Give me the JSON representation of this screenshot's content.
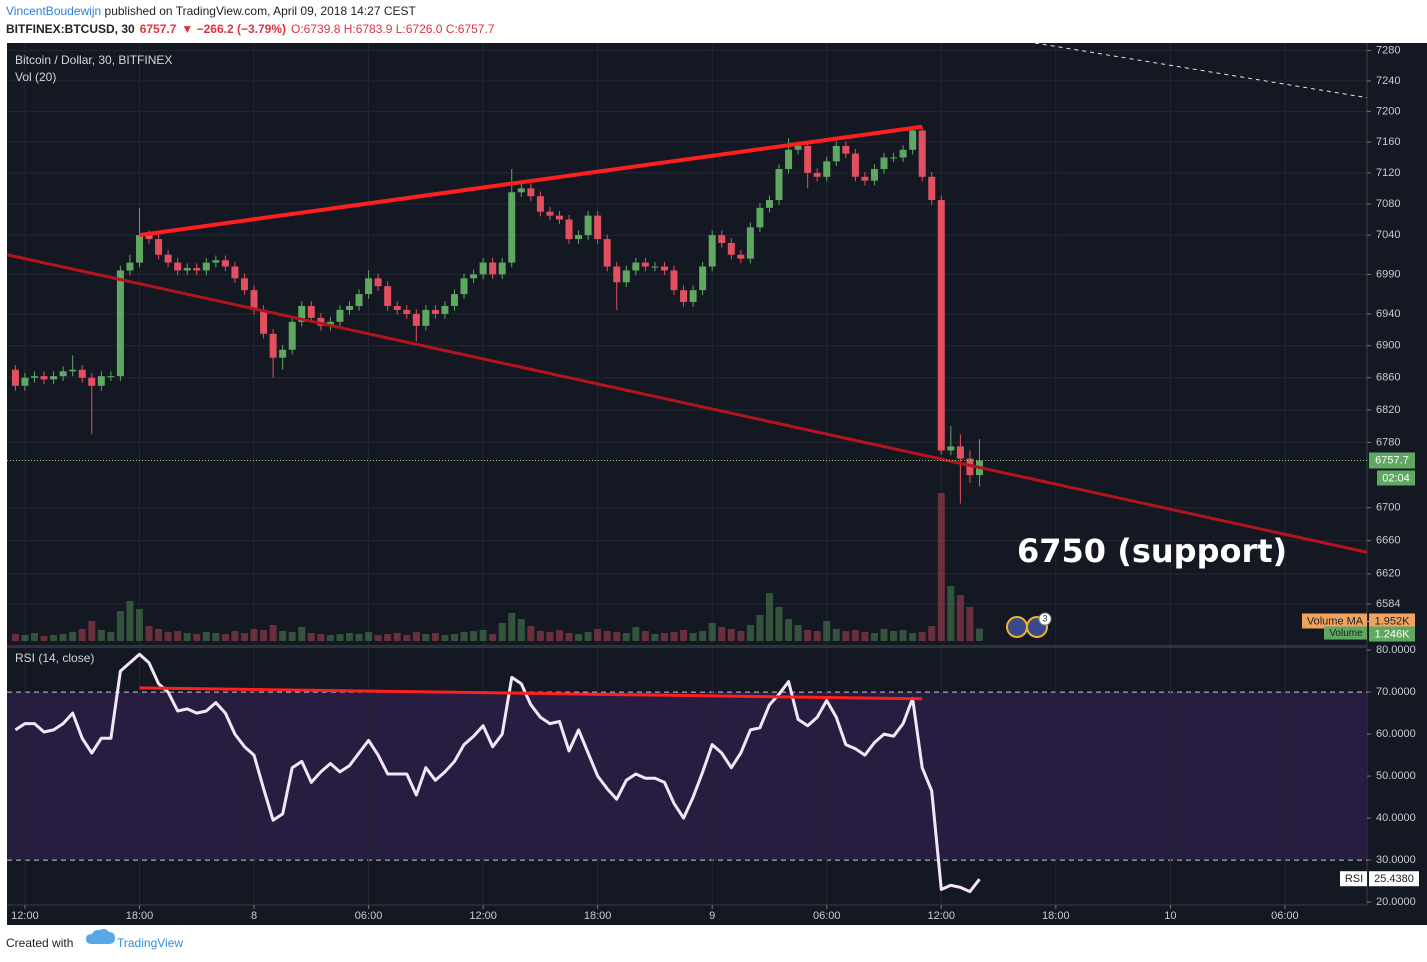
{
  "header": {
    "author": "VincentBoudewijn",
    "published": " published on TradingView.com, April 09, 2018 14:27 CEST",
    "symbol": "BITFINEX:BTCUSD, 30",
    "last": "6757.7",
    "change": "▼ −266.2 (−3.79%)",
    "ohlc": "O:6739.8 H:6783.9 L:6726.0 C:6757.7"
  },
  "footer": {
    "created": "Created with",
    "brand": "TradingView"
  },
  "chart_data": [
    {
      "type": "candlestick",
      "title": "Bitcoin / Dollar, 30, BITFINEX",
      "volume_title": "Vol (20)",
      "x": [
        -0.5,
        0,
        0.5,
        1,
        1.5,
        2,
        2.5,
        3,
        3.5,
        4,
        4.5,
        5,
        5.5,
        6,
        6.5,
        7,
        7.5,
        8,
        8.5,
        9,
        9.5,
        10,
        10.5,
        11,
        11.5,
        12,
        12.5,
        13,
        13.5,
        14,
        14.5,
        15,
        15.5,
        16,
        16.5,
        17,
        17.5,
        18,
        18.5,
        19,
        19.5,
        20,
        20.5,
        21,
        21.5,
        22,
        22.5,
        23,
        23.5,
        24,
        24.5,
        25,
        25.5,
        26,
        26.5,
        27,
        27.5,
        28,
        28.5,
        29,
        29.5,
        30,
        30.5,
        31,
        31.5,
        32,
        32.5,
        33,
        33.5,
        34,
        34.5,
        35,
        35.5,
        36,
        36.5,
        37,
        37.5,
        38,
        38.5,
        39,
        39.5,
        40,
        40.5,
        41,
        41.5,
        42,
        42.5,
        43,
        43.5,
        44,
        44.5,
        45,
        45.5,
        46,
        46.5,
        47,
        47.5,
        48,
        48.5,
        49,
        49.5,
        50
      ],
      "open": [
        6870,
        6850,
        6860,
        6862,
        6858,
        6862,
        6868,
        6870,
        6860,
        6850,
        6862,
        6862,
        6995,
        7005,
        7040,
        7035,
        7015,
        7005,
        6995,
        6998,
        6995,
        7005,
        7008,
        7000,
        6985,
        6970,
        6945,
        6915,
        6885,
        6895,
        6930,
        6950,
        6935,
        6925,
        6930,
        6945,
        6950,
        6965,
        6985,
        6975,
        6950,
        6945,
        6940,
        6925,
        6945,
        6940,
        6950,
        6965,
        6985,
        6990,
        7005,
        6990,
        7005,
        7095,
        7100,
        7090,
        7070,
        7065,
        7060,
        7035,
        7040,
        7065,
        7035,
        7000,
        6980,
        6995,
        7005,
        7000,
        7000,
        6995,
        6970,
        6955,
        6970,
        7000,
        7040,
        7030,
        7015,
        7010,
        7050,
        7075,
        7085,
        7125,
        7150,
        7155,
        7120,
        7115,
        7135,
        7155,
        7145,
        7115,
        7110,
        7125,
        7140,
        7140,
        7150,
        7175,
        7115,
        7085,
        6770,
        6775,
        6760,
        6739.8
      ],
      "high": [
        6876,
        6866,
        6868,
        6868,
        6868,
        6874,
        6888,
        6876,
        6866,
        6868,
        6868,
        7001,
        7015,
        7075,
        7046,
        7041,
        7021,
        7011,
        7004,
        7004,
        7011,
        7014,
        7014,
        7006,
        6991,
        6976,
        6951,
        6921,
        6901,
        6936,
        6956,
        6956,
        6941,
        6936,
        6951,
        6956,
        6971,
        6995,
        6991,
        6981,
        6956,
        6951,
        6946,
        6951,
        6951,
        6956,
        6971,
        6991,
        6996,
        7011,
        7011,
        7011,
        7125,
        7106,
        7106,
        7096,
        7076,
        7071,
        7066,
        7046,
        7071,
        7071,
        7041,
        7006,
        7001,
        7011,
        7011,
        7006,
        7006,
        7001,
        6976,
        6976,
        7006,
        7046,
        7046,
        7036,
        7021,
        7056,
        7081,
        7091,
        7131,
        7165,
        7161,
        7161,
        7126,
        7141,
        7161,
        7161,
        7151,
        7121,
        7131,
        7146,
        7146,
        7156,
        7180,
        7180,
        7121,
        7091,
        6800,
        6790,
        6770,
        6783.9
      ],
      "low": [
        6844,
        6844,
        6854,
        6852,
        6852,
        6856,
        6862,
        6854,
        6790,
        6844,
        6856,
        6856,
        6989,
        6999,
        7029,
        7009,
        6999,
        6989,
        6989,
        6989,
        6989,
        6999,
        6994,
        6979,
        6964,
        6939,
        6909,
        6860,
        6870,
        6889,
        6924,
        6929,
        6919,
        6919,
        6924,
        6939,
        6944,
        6959,
        6969,
        6944,
        6939,
        6934,
        6905,
        6919,
        6934,
        6934,
        6944,
        6959,
        6979,
        6984,
        6984,
        6984,
        6999,
        7089,
        7084,
        7064,
        7059,
        7054,
        7029,
        7029,
        7034,
        7029,
        6994,
        6945,
        6974,
        6989,
        6994,
        6994,
        6989,
        6964,
        6949,
        6949,
        6964,
        6994,
        7024,
        7009,
        7004,
        7004,
        7044,
        7069,
        7079,
        7119,
        7144,
        7100,
        7109,
        7109,
        7129,
        7139,
        7109,
        7104,
        7104,
        7119,
        7134,
        7134,
        7144,
        7109,
        7079,
        6765,
        6764,
        6705,
        6730,
        6726
      ],
      "close": [
        6850,
        6860,
        6862,
        6858,
        6862,
        6868,
        6870,
        6860,
        6850,
        6862,
        6862,
        6995,
        7005,
        7040,
        7035,
        7015,
        7005,
        6995,
        6998,
        6995,
        7005,
        7008,
        7000,
        6985,
        6970,
        6945,
        6915,
        6885,
        6895,
        6930,
        6950,
        6935,
        6925,
        6930,
        6945,
        6950,
        6965,
        6985,
        6975,
        6950,
        6945,
        6940,
        6925,
        6945,
        6940,
        6950,
        6965,
        6985,
        6990,
        7005,
        6990,
        7005,
        7095,
        7100,
        7090,
        7070,
        7065,
        7060,
        7035,
        7040,
        7065,
        7035,
        7000,
        6980,
        6995,
        7005,
        7000,
        7000,
        6995,
        6970,
        6955,
        6970,
        7000,
        7040,
        7030,
        7015,
        7010,
        7050,
        7075,
        7085,
        7125,
        7150,
        7155,
        7120,
        7115,
        7135,
        7155,
        7145,
        7115,
        7110,
        7125,
        7140,
        7140,
        7150,
        7175,
        7115,
        7085,
        6770,
        6775,
        6760,
        6739.8,
        6757.7
      ],
      "volume": [
        700,
        600,
        800,
        500,
        600,
        700,
        900,
        1200,
        2000,
        1100,
        900,
        3000,
        4000,
        3200,
        1500,
        1200,
        900,
        1000,
        800,
        700,
        900,
        800,
        700,
        1000,
        800,
        1200,
        1100,
        1600,
        1000,
        900,
        1400,
        800,
        700,
        600,
        700,
        800,
        700,
        900,
        600,
        700,
        800,
        600,
        900,
        700,
        800,
        600,
        700,
        900,
        1000,
        1100,
        700,
        1800,
        2800,
        2200,
        1500,
        1000,
        900,
        1100,
        800,
        700,
        900,
        1200,
        1000,
        900,
        800,
        1400,
        1000,
        700,
        800,
        900,
        1100,
        800,
        1000,
        1800,
        1400,
        1200,
        1000,
        1600,
        2600,
        4800,
        3400,
        2200,
        1600,
        1100,
        1000,
        2000,
        1200,
        1000,
        1100,
        900,
        800,
        1200,
        1000,
        1100,
        800,
        900,
        1500,
        14800,
        5500,
        4600,
        3400,
        1246
      ],
      "log_scale": true,
      "ylim": [
        6535,
        7290
      ],
      "yticks": [
        7280,
        7240,
        7200,
        7160,
        7120,
        7080,
        7040,
        6990,
        6940,
        6900,
        6860,
        6820,
        6780,
        6700,
        6660,
        6620,
        6584
      ],
      "xlim": [
        -0.94,
        70.3
      ],
      "xticks": [
        {
          "value": 0,
          "label": "12:00"
        },
        {
          "value": 6,
          "label": "18:00"
        },
        {
          "value": 12,
          "label": "8"
        },
        {
          "value": 18,
          "label": "06:00"
        },
        {
          "value": 24,
          "label": "12:00"
        },
        {
          "value": 30,
          "label": "18:00"
        },
        {
          "value": 36,
          "label": "9"
        },
        {
          "value": 42,
          "label": "06:00"
        },
        {
          "value": 48,
          "label": "12:00"
        },
        {
          "value": 54,
          "label": "18:00"
        },
        {
          "value": 60,
          "label": "10"
        },
        {
          "value": 66,
          "label": "06:00"
        }
      ],
      "vlim": [
        0,
        20000
      ],
      "up_color": "#5fa862",
      "down_color": "#e2505f",
      "grid": true,
      "volume_ma": 1952,
      "volume_ma_label": "1.952K",
      "volume_ma_name": "Volume MA",
      "volume_name": "Volume",
      "last_volume_label": "1.246K",
      "countdown": "02:04",
      "trendlines": [
        {
          "x": [
            6,
            47
          ],
          "y": [
            7040,
            7180
          ],
          "color": "#ff1f1f"
        },
        {
          "x": [
            -0.94,
            70.3
          ],
          "y": [
            7015,
            6646
          ],
          "color": "#b3141e"
        },
        {
          "x": [
            52.9,
            70.3
          ],
          "y": [
            7290,
            7218
          ],
          "color": "#e6e6e6",
          "dashed": true
        }
      ],
      "annotation": "6750 (support)",
      "event_badge": "3"
    },
    {
      "type": "line",
      "title": "RSI (14, close)",
      "series_name": "RSI",
      "x": [
        -0.5,
        0,
        0.5,
        1,
        1.5,
        2,
        2.5,
        3,
        3.5,
        4,
        4.5,
        5,
        5.5,
        6,
        6.5,
        7,
        7.5,
        8,
        8.5,
        9,
        9.5,
        10,
        10.5,
        11,
        11.5,
        12,
        12.5,
        13,
        13.5,
        14,
        14.5,
        15,
        15.5,
        16,
        16.5,
        17,
        17.5,
        18,
        18.5,
        19,
        19.5,
        20,
        20.5,
        21,
        21.5,
        22,
        22.5,
        23,
        23.5,
        24,
        24.5,
        25,
        25.5,
        26,
        26.5,
        27,
        27.5,
        28,
        28.5,
        29,
        29.5,
        30,
        30.5,
        31,
        31.5,
        32,
        32.5,
        33,
        33.5,
        34,
        34.5,
        35,
        35.5,
        36,
        36.5,
        37,
        37.5,
        38,
        38.5,
        39,
        39.5,
        40,
        40.5,
        41,
        41.5,
        42,
        42.5,
        43,
        43.5,
        44,
        44.5,
        45,
        45.5,
        46,
        46.5,
        47,
        47.5,
        48,
        48.5,
        49,
        49.5,
        50
      ],
      "values": [
        61,
        62.5,
        62.5,
        60.5,
        61,
        62.5,
        65,
        59,
        55.5,
        59,
        59,
        75,
        77,
        79,
        77,
        72,
        70,
        65.5,
        66,
        65,
        65.5,
        67.5,
        65,
        60,
        57,
        55,
        47,
        39.5,
        41,
        52,
        53.5,
        48.5,
        51,
        53,
        51,
        52.5,
        55.5,
        58.5,
        55,
        50.5,
        50.5,
        50.5,
        45.5,
        52,
        49,
        51,
        53.5,
        57.5,
        59.5,
        62,
        57,
        60,
        73.5,
        72,
        67,
        64,
        62.5,
        63,
        56,
        61,
        55.5,
        50,
        47,
        44.5,
        49,
        50.5,
        49.5,
        49.5,
        48.5,
        43.5,
        40,
        45,
        51,
        57.5,
        55.5,
        52,
        55.5,
        61,
        61.5,
        67,
        69.5,
        72.5,
        63.5,
        62,
        64,
        68,
        64,
        57.5,
        56.5,
        55,
        58,
        60,
        59.5,
        62.5,
        68.5,
        52,
        46.5,
        23,
        24,
        23.5,
        22.5,
        25.438
      ],
      "last_value_label": "25.4380",
      "ylim": [
        19.3,
        80.5
      ],
      "yticks": [
        {
          "value": 80,
          "label": "80.0000"
        },
        {
          "value": 70,
          "label": "70.0000"
        },
        {
          "value": 60,
          "label": "60.0000"
        },
        {
          "value": 50,
          "label": "50.0000"
        },
        {
          "value": 40,
          "label": "40.0000"
        },
        {
          "value": 30,
          "label": "30.0000"
        },
        {
          "value": 20,
          "label": "20.0000"
        }
      ],
      "bands": [
        30,
        70
      ],
      "color": "#f4e6f6",
      "band_color": "#271d40",
      "trendline": {
        "x": [
          6,
          47
        ],
        "y": [
          71,
          68.4
        ],
        "color": "#ff1f1f"
      }
    }
  ]
}
